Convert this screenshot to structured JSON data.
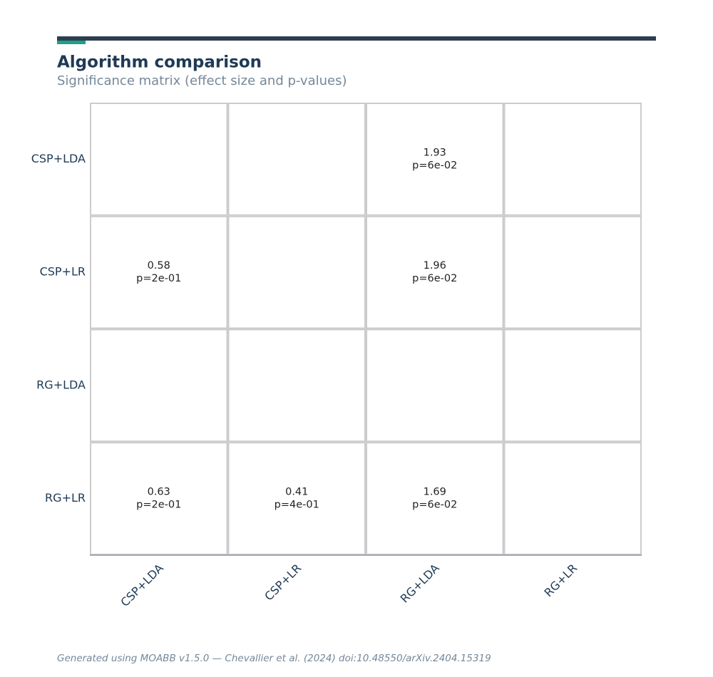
{
  "chart_data": {
    "type": "heatmap",
    "title": "Algorithm comparison",
    "subtitle": "Significance matrix (effect size and p-values)",
    "rows": [
      "CSP+LDA",
      "CSP+LR",
      "RG+LDA",
      "RG+LR"
    ],
    "columns": [
      "CSP+LDA",
      "CSP+LR",
      "RG+LDA",
      "RG+LR"
    ],
    "values": [
      [
        null,
        null,
        1.93,
        null
      ],
      [
        0.58,
        null,
        1.96,
        null
      ],
      [
        null,
        null,
        null,
        null
      ],
      [
        0.63,
        0.41,
        1.69,
        null
      ]
    ],
    "p_labels": [
      [
        null,
        null,
        "p=6e-02",
        null
      ],
      [
        "p=2e-01",
        null,
        "p=6e-02",
        null
      ],
      [
        null,
        null,
        null,
        null
      ],
      [
        "p=2e-01",
        "p=4e-01",
        "p=6e-02",
        null
      ]
    ],
    "footer": "Generated using MOABB v1.5.0 — Chevallier et al. (2024) doi:10.48550/arXiv.2404.15319"
  }
}
